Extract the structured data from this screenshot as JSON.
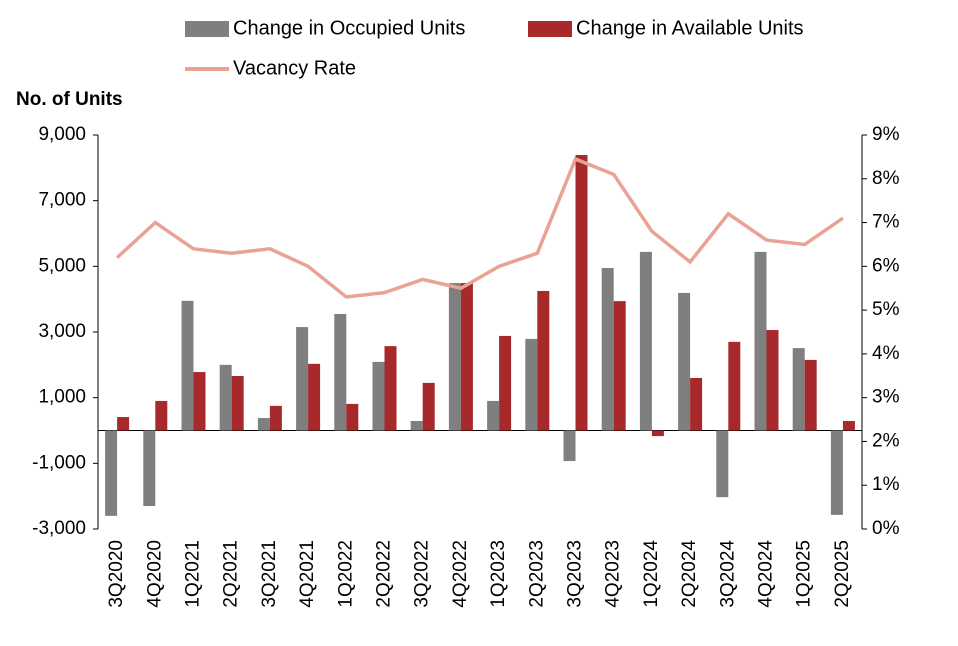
{
  "chart_data": {
    "type": "bar-line",
    "y_axis_label": "No. of Units",
    "categories": [
      "3Q2020",
      "4Q2020",
      "1Q2021",
      "2Q2021",
      "3Q2021",
      "4Q2021",
      "1Q2022",
      "2Q2022",
      "3Q2022",
      "4Q2022",
      "1Q2023",
      "2Q2023",
      "3Q2023",
      "4Q2023",
      "1Q2024",
      "2Q2024",
      "3Q2024",
      "4Q2024",
      "1Q2025",
      "2Q2025"
    ],
    "series": [
      {
        "name": "Change in Occupied Units",
        "type": "bar",
        "color": "#7f7f7f",
        "values": [
          -2600,
          -2300,
          3950,
          2000,
          380,
          3150,
          3550,
          2090,
          290,
          4490,
          900,
          2790,
          -930,
          4950,
          5440,
          4190,
          -2030,
          5440,
          2510,
          -2570
        ]
      },
      {
        "name": "Change in Available Units",
        "type": "bar",
        "color": "#a8292b",
        "values": [
          410,
          900,
          1780,
          1660,
          750,
          2030,
          810,
          2570,
          1450,
          4490,
          2880,
          4250,
          8390,
          3940,
          -170,
          1600,
          2700,
          3060,
          2150,
          290
        ]
      },
      {
        "name": "Vacancy Rate",
        "type": "line",
        "axis": "y2",
        "color": "#e8a393",
        "values": [
          6.2,
          7.0,
          6.4,
          6.3,
          6.4,
          6.0,
          5.3,
          5.4,
          5.7,
          5.5,
          6.0,
          6.3,
          8.45,
          8.1,
          6.8,
          6.1,
          7.2,
          6.6,
          6.5,
          7.1
        ]
      }
    ],
    "ylim": [
      -3000,
      9000
    ],
    "yticks": [
      {
        "value": -3000,
        "label": "-3,000"
      },
      {
        "value": -1000,
        "label": "-1,000"
      },
      {
        "value": 1000,
        "label": "1,000"
      },
      {
        "value": 3000,
        "label": "3,000"
      },
      {
        "value": 5000,
        "label": "5,000"
      },
      {
        "value": 7000,
        "label": "7,000"
      },
      {
        "value": 9000,
        "label": "9,000"
      }
    ],
    "y2lim": [
      0,
      9
    ],
    "y2ticks": [
      {
        "value": 0,
        "label": "0%"
      },
      {
        "value": 1,
        "label": "1%"
      },
      {
        "value": 2,
        "label": "2%"
      },
      {
        "value": 3,
        "label": "3%"
      },
      {
        "value": 4,
        "label": "4%"
      },
      {
        "value": 5,
        "label": "5%"
      },
      {
        "value": 6,
        "label": "6%"
      },
      {
        "value": 7,
        "label": "7%"
      },
      {
        "value": 8,
        "label": "8%"
      },
      {
        "value": 9,
        "label": "9%"
      }
    ],
    "grid": false
  }
}
